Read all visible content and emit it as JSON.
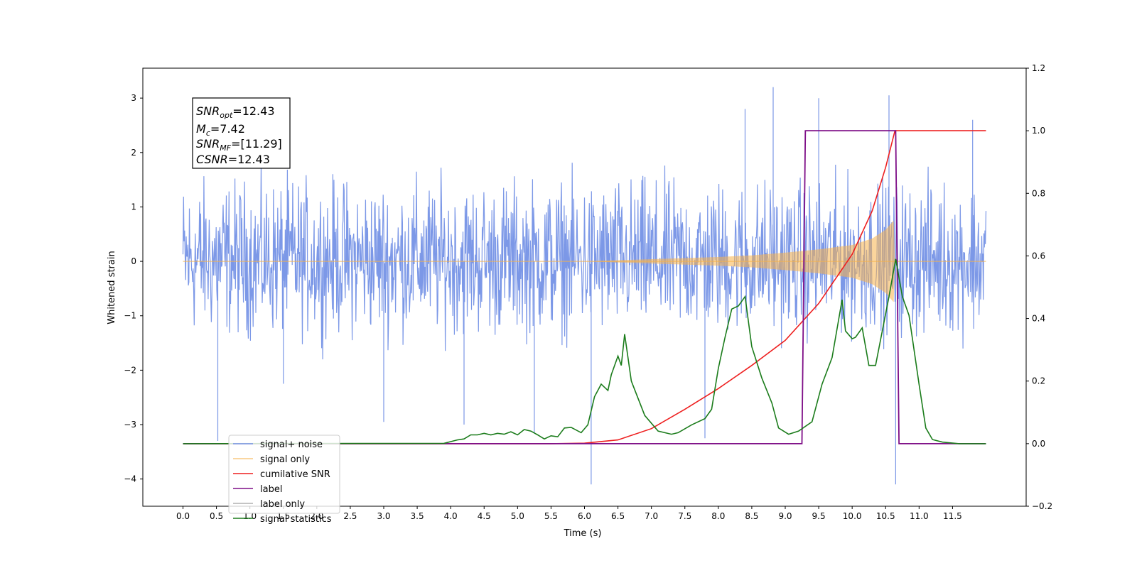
{
  "chart_data": {
    "type": "line",
    "xlabel": "Time (s)",
    "ylabel": "Whitened strain",
    "xlim": [
      -0.6,
      12.6
    ],
    "ylim": [
      -4.5,
      3.55
    ],
    "y2lim": [
      -0.2,
      1.2
    ],
    "x_ticks": [
      "0.0",
      "0.5",
      "1.0",
      "1.5",
      "2.0",
      "2.5",
      "3.0",
      "3.5",
      "4.0",
      "4.5",
      "5.0",
      "5.5",
      "6.0",
      "6.5",
      "7.0",
      "7.5",
      "8.0",
      "8.5",
      "9.0",
      "9.5",
      "10.0",
      "10.5",
      "11.0",
      "11.5"
    ],
    "y_ticks": [
      "3",
      "2",
      "1",
      "0",
      "−1",
      "−2",
      "−3",
      "−4"
    ],
    "y2_ticks": [
      "1.2",
      "1.0",
      "0.8",
      "0.6",
      "0.4",
      "0.2",
      "0.0",
      "−0.2"
    ],
    "annotation": {
      "snr_opt": "12.43",
      "mc": "7.42",
      "snr_mf": "[11.29]",
      "csnr": "12.43"
    },
    "legend_position": "lower-left",
    "series": [
      {
        "name": "signal+ noise",
        "color": "#7592e6",
        "axis": "left",
        "noise_range": [
          -1.9,
          2.1
        ],
        "spikes": [
          [
            0.52,
            -3.3
          ],
          [
            1.5,
            -2.25
          ],
          [
            3.0,
            -2.95
          ],
          [
            4.2,
            -3.0
          ],
          [
            5.25,
            -3.15
          ],
          [
            6.1,
            -4.1
          ],
          [
            7.8,
            -3.25
          ],
          [
            8.4,
            2.8
          ],
          [
            8.82,
            3.2
          ],
          [
            9.5,
            3.0
          ],
          [
            10.55,
            3.05
          ],
          [
            10.65,
            -4.1
          ],
          [
            11.8,
            2.6
          ]
        ]
      },
      {
        "name": "signal only",
        "color": "#f7b24a",
        "axis": "left",
        "envelope": [
          [
            6.0,
            0.0
          ],
          [
            6.5,
            0.02
          ],
          [
            7.0,
            0.04
          ],
          [
            7.5,
            0.06
          ],
          [
            8.0,
            0.08
          ],
          [
            8.5,
            0.11
          ],
          [
            9.0,
            0.16
          ],
          [
            9.5,
            0.22
          ],
          [
            10.0,
            0.3
          ],
          [
            10.3,
            0.42
          ],
          [
            10.5,
            0.58
          ],
          [
            10.62,
            0.75
          ],
          [
            10.64,
            0.0
          ]
        ]
      },
      {
        "name": "cumilative SNR",
        "color": "#ee1f1f",
        "axis": "right",
        "points": [
          [
            0.0,
            0.0
          ],
          [
            5.5,
            0.0
          ],
          [
            6.0,
            0.0015
          ],
          [
            6.5,
            0.012
          ],
          [
            7.0,
            0.048
          ],
          [
            7.5,
            0.11
          ],
          [
            8.0,
            0.176
          ],
          [
            8.5,
            0.25
          ],
          [
            9.0,
            0.33
          ],
          [
            9.5,
            0.448
          ],
          [
            10.0,
            0.605
          ],
          [
            10.3,
            0.744
          ],
          [
            10.5,
            0.883
          ],
          [
            10.64,
            1.0
          ],
          [
            12.0,
            1.0
          ]
        ]
      },
      {
        "name": "label",
        "color": "#7e0e87",
        "axis": "right",
        "points": [
          [
            0.0,
            0.0
          ],
          [
            9.25,
            0.0
          ],
          [
            9.3,
            1.0
          ],
          [
            10.65,
            1.0
          ],
          [
            10.7,
            0.0
          ],
          [
            12.0,
            0.0
          ]
        ]
      },
      {
        "name": "label only",
        "color": "#b0b0b0",
        "axis": "right",
        "points": []
      },
      {
        "name": "signal statistics",
        "color": "#1b7c1b",
        "axis": "right",
        "points": [
          [
            0.0,
            0.0
          ],
          [
            3.9,
            0.001
          ],
          [
            4.1,
            0.012
          ],
          [
            4.2,
            0.015
          ],
          [
            4.3,
            0.028
          ],
          [
            4.4,
            0.028
          ],
          [
            4.5,
            0.033
          ],
          [
            4.6,
            0.028
          ],
          [
            4.7,
            0.033
          ],
          [
            4.8,
            0.03
          ],
          [
            4.9,
            0.038
          ],
          [
            5.0,
            0.028
          ],
          [
            5.1,
            0.045
          ],
          [
            5.2,
            0.04
          ],
          [
            5.3,
            0.028
          ],
          [
            5.4,
            0.015
          ],
          [
            5.5,
            0.025
          ],
          [
            5.6,
            0.022
          ],
          [
            5.7,
            0.05
          ],
          [
            5.8,
            0.052
          ],
          [
            5.95,
            0.035
          ],
          [
            6.05,
            0.06
          ],
          [
            6.15,
            0.15
          ],
          [
            6.25,
            0.19
          ],
          [
            6.35,
            0.17
          ],
          [
            6.4,
            0.22
          ],
          [
            6.5,
            0.28
          ],
          [
            6.55,
            0.25
          ],
          [
            6.6,
            0.35
          ],
          [
            6.7,
            0.2
          ],
          [
            6.9,
            0.09
          ],
          [
            7.1,
            0.04
          ],
          [
            7.3,
            0.03
          ],
          [
            7.4,
            0.035
          ],
          [
            7.6,
            0.06
          ],
          [
            7.8,
            0.08
          ],
          [
            7.9,
            0.11
          ],
          [
            8.0,
            0.24
          ],
          [
            8.1,
            0.34
          ],
          [
            8.2,
            0.43
          ],
          [
            8.3,
            0.44
          ],
          [
            8.4,
            0.47
          ],
          [
            8.5,
            0.31
          ],
          [
            8.65,
            0.21
          ],
          [
            8.8,
            0.13
          ],
          [
            8.9,
            0.05
          ],
          [
            9.05,
            0.03
          ],
          [
            9.2,
            0.04
          ],
          [
            9.4,
            0.07
          ],
          [
            9.55,
            0.19
          ],
          [
            9.7,
            0.275
          ],
          [
            9.85,
            0.46
          ],
          [
            9.9,
            0.36
          ],
          [
            10.0,
            0.335
          ],
          [
            10.05,
            0.34
          ],
          [
            10.15,
            0.37
          ],
          [
            10.25,
            0.25
          ],
          [
            10.35,
            0.25
          ],
          [
            10.55,
            0.47
          ],
          [
            10.65,
            0.59
          ],
          [
            10.75,
            0.47
          ],
          [
            10.85,
            0.41
          ],
          [
            11.0,
            0.19
          ],
          [
            11.1,
            0.05
          ],
          [
            11.2,
            0.013
          ],
          [
            11.35,
            0.005
          ],
          [
            11.6,
            0.0
          ],
          [
            12.0,
            0.0
          ]
        ]
      }
    ]
  }
}
